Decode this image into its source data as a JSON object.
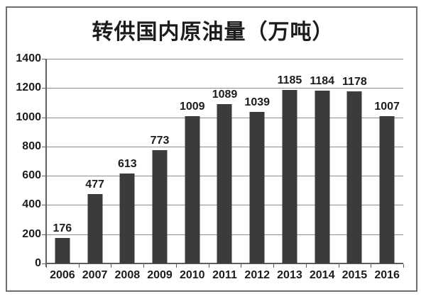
{
  "title": "转供国内原油量（万吨）",
  "colors": {
    "bar": "#3b3b3b",
    "gridline": "#8c8c8c",
    "axis": "#5f5f5f",
    "text": "#1c1c1c",
    "frame_border": "#6e6e6e",
    "background": "#ffffff"
  },
  "chart_data": {
    "type": "bar",
    "title": "转供国内原油量（万吨）",
    "categories": [
      "2006",
      "2007",
      "2008",
      "2009",
      "2010",
      "2011",
      "2012",
      "2013",
      "2014",
      "2015",
      "2016"
    ],
    "values": [
      176,
      477,
      613,
      773,
      1009,
      1089,
      1039,
      1185,
      1184,
      1178,
      1007
    ],
    "xlabel": "",
    "ylabel": "",
    "ylim": [
      0,
      1400
    ],
    "ytick_interval": 200,
    "ytick_labels": [
      "1400",
      "1200",
      "1000",
      "800",
      "600",
      "400",
      "200",
      "0"
    ],
    "grid": true,
    "legend": false,
    "data_labels": true,
    "bar_color": "#3b3b3b"
  }
}
